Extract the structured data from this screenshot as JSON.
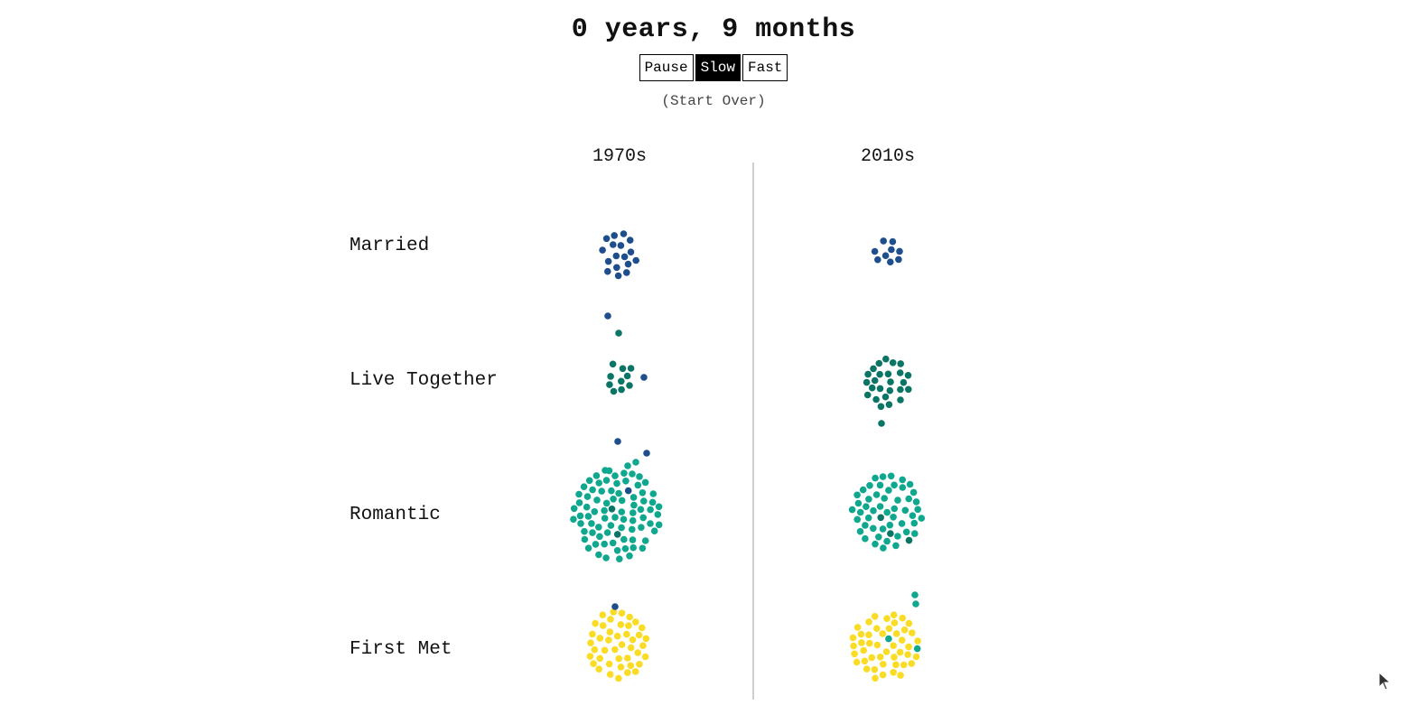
{
  "header": {
    "title": "0 years, 9 months"
  },
  "controls": {
    "pause_label": "Pause",
    "slow_label": "Slow",
    "fast_label": "Fast",
    "active_speed": "Slow",
    "restart_label": "(Start Over)"
  },
  "columns": {
    "left": "1970s",
    "right": "2010s"
  },
  "rows": {
    "married": "Married",
    "live_together": "Live Together",
    "romantic": "Romantic",
    "first_met": "First Met"
  },
  "colors": {
    "married": "#1f4e8c",
    "live_together": "#0b7565",
    "romantic": "#0fa88e",
    "first_met": "#fadc24",
    "divider": "#cfcfcf",
    "button_active_bg": "#000000"
  },
  "icons": {
    "cursor": "mouse-pointer-icon"
  }
}
